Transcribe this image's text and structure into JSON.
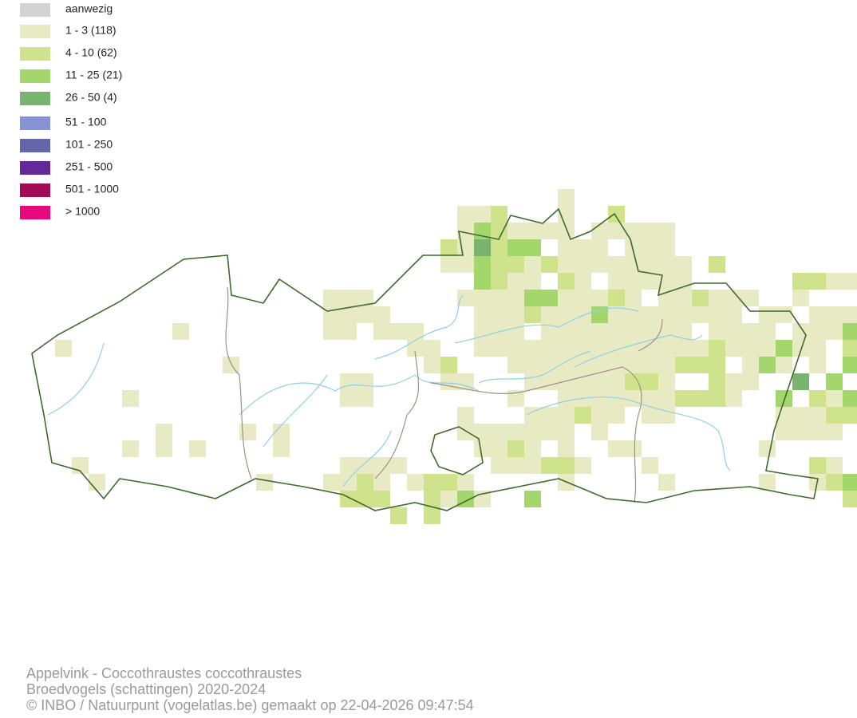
{
  "legend": [
    {
      "label": "aanwezig",
      "color": "#d3d3d3"
    },
    {
      "label": "1 - 3 (118)",
      "color": "#e8eac4"
    },
    {
      "label": "4 - 10 (62)",
      "color": "#cfe38c"
    },
    {
      "label": "11 - 25 (21)",
      "color": "#a3d76b"
    },
    {
      "label": "26 - 50 (4)",
      "color": "#79b370"
    },
    {
      "label": "51 - 100",
      "color": "#8593d3"
    },
    {
      "label": "101 - 250",
      "color": "#6366a8"
    },
    {
      "label": "251 - 500",
      "color": "#64289a"
    },
    {
      "label": "501 - 1000",
      "color": "#a30a55"
    },
    {
      "label": "> 1000",
      "color": "#e6097e"
    }
  ],
  "footer": {
    "title": "Appelvink - Coccothraustes coccothraustes",
    "subtitle": "Broedvogels (schattingen) 2020-2024",
    "credit": "© INBO / Natuurpunt (vogelatlas.be) gemaakt op 22-04-2026 09:47:54"
  }
}
